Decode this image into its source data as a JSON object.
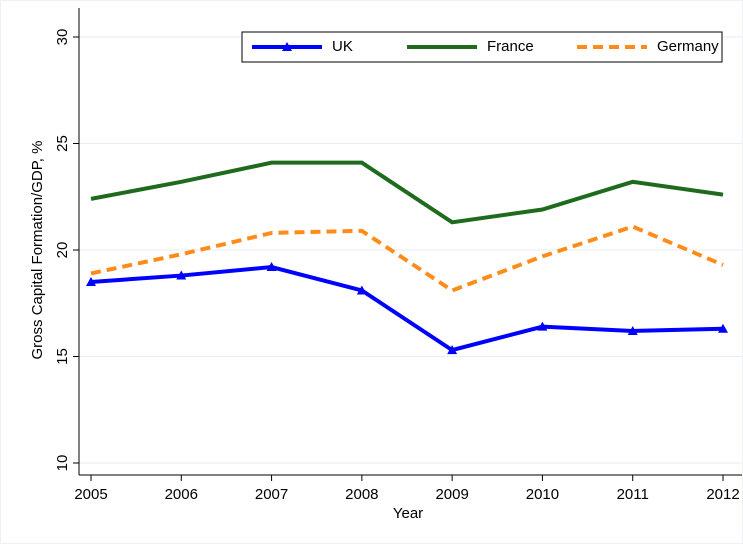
{
  "chart_data": {
    "type": "line",
    "x_label": "Year",
    "y_label": "Gross Capital Formation/GDP, %",
    "x": [
      2005,
      2006,
      2007,
      2008,
      2009,
      2010,
      2011,
      2012
    ],
    "series": [
      {
        "name": "UK",
        "color": "#0000ff",
        "dash": false,
        "marker": "triangle",
        "values": [
          18.5,
          18.8,
          19.2,
          18.1,
          15.3,
          16.4,
          16.2,
          16.3
        ]
      },
      {
        "name": "France",
        "color": "#1e6b1e",
        "dash": false,
        "marker": "none",
        "values": [
          22.4,
          23.2,
          24.1,
          24.1,
          21.3,
          21.9,
          23.2,
          22.6
        ]
      },
      {
        "name": "Germany",
        "color": "#ff8c1a",
        "dash": true,
        "marker": "none",
        "values": [
          18.9,
          19.8,
          20.8,
          20.9,
          18.1,
          19.7,
          21.1,
          19.3
        ]
      }
    ],
    "xlim": [
      2005,
      2012
    ],
    "xticks": [
      2005,
      2006,
      2007,
      2008,
      2009,
      2010,
      2011,
      2012
    ],
    "ylim": [
      10,
      30
    ],
    "yticks": [
      10,
      15,
      20,
      25,
      30
    ],
    "grid": true,
    "legend_position": "top-right"
  }
}
